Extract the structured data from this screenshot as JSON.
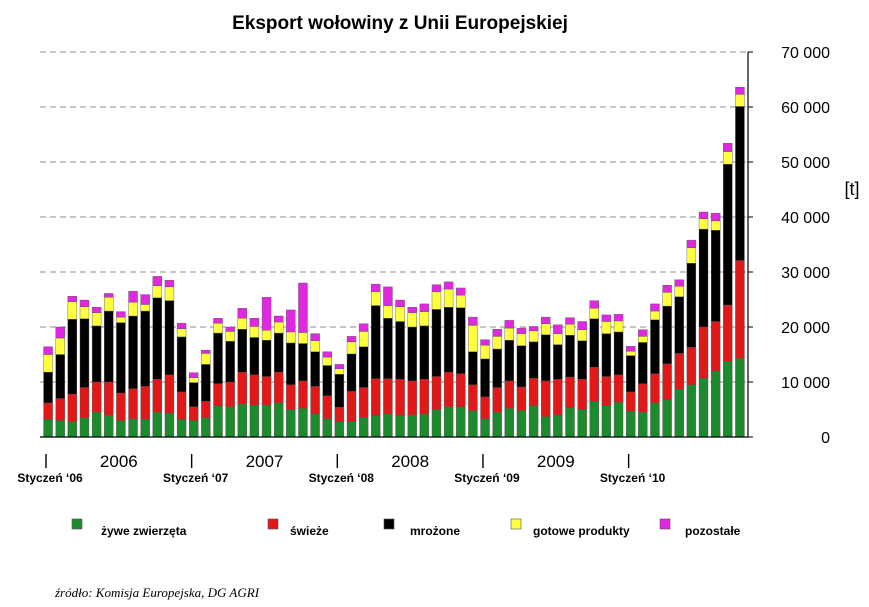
{
  "chart_data": {
    "type": "bar",
    "stacked": true,
    "title": "Eksport wołowiny z Unii Europejskiej",
    "unit_label": "[t]",
    "ylim": [
      0,
      70000
    ],
    "y_ticks": [
      "0",
      "10 000",
      "20 000",
      "30 000",
      "40 000",
      "50 000",
      "60 000",
      "70 000"
    ],
    "y_axis_side": "right",
    "grid": "horizontal dashed",
    "legend_position": "bottom",
    "year_labels": [
      "2006",
      "2007",
      "2008",
      "2009"
    ],
    "month_labels": [
      "Styczeń ‘06",
      "Styczeń ‘07",
      "Styczeń ‘08",
      "Styczeń ‘09",
      "Styczeń ‘10"
    ],
    "series": [
      {
        "name": "żywe zwierzęta",
        "color": "#1e8a2e",
        "values": [
          3200,
          3000,
          2800,
          3500,
          4500,
          4000,
          3000,
          3300,
          3200,
          4500,
          4300,
          3200,
          3000,
          3500,
          5700,
          5500,
          6000,
          5800,
          5800,
          6200,
          5000,
          5200,
          4200,
          3300,
          2800,
          2800,
          3600,
          4000,
          4200,
          4000,
          4000,
          4200,
          5000,
          5500,
          5500,
          4800,
          3300,
          4500,
          5200,
          4800,
          5700,
          3700,
          4000,
          5300,
          5000,
          6500,
          5700,
          6300,
          4700,
          4500,
          6200,
          6800,
          8700,
          9500,
          10700,
          12000,
          13800,
          14300
        ]
      },
      {
        "name": "świeże",
        "color": "#e01818",
        "values": [
          3000,
          4000,
          5000,
          5500,
          5500,
          6000,
          5000,
          5500,
          6000,
          6000,
          7000,
          5000,
          2500,
          3000,
          4000,
          4500,
          5800,
          5500,
          5200,
          5600,
          4500,
          5000,
          5000,
          4200,
          2600,
          5500,
          5400,
          6600,
          6400,
          6500,
          6200,
          6300,
          6000,
          6300,
          6000,
          4700,
          4000,
          4500,
          5000,
          4300,
          5000,
          6500,
          6500,
          5600,
          5500,
          6200,
          5300,
          5000,
          3500,
          5200,
          5300,
          6500,
          6500,
          6800,
          9300,
          9000,
          10200,
          17800
        ]
      },
      {
        "name": "mrożone",
        "color": "#000000",
        "values": [
          5600,
          8000,
          13600,
          12500,
          10200,
          12900,
          12800,
          13200,
          13700,
          14800,
          13500,
          10000,
          4400,
          6700,
          9200,
          7400,
          7800,
          6800,
          6600,
          7100,
          7600,
          6800,
          6300,
          5500,
          6000,
          6800,
          7400,
          13300,
          11000,
          10500,
          9800,
          9700,
          12200,
          11800,
          12000,
          6000,
          6900,
          7000,
          7400,
          7500,
          6600,
          8400,
          6300,
          7600,
          7000,
          8800,
          7800,
          7800,
          6600,
          7500,
          9800,
          10500,
          10300,
          15300,
          17800,
          16600,
          25600,
          28000
        ]
      },
      {
        "name": "gotowe produkty",
        "color": "#ffff40",
        "values": [
          3200,
          3000,
          3200,
          2200,
          2400,
          2500,
          1000,
          2500,
          1200,
          2200,
          2500,
          1500,
          900,
          2000,
          1800,
          1800,
          2000,
          2000,
          1800,
          2000,
          2000,
          2000,
          2000,
          1500,
          1000,
          2200,
          2800,
          2500,
          2300,
          2700,
          2600,
          2600,
          3200,
          3300,
          2300,
          4800,
          2500,
          2300,
          2200,
          2200,
          2000,
          2000,
          2000,
          2000,
          2000,
          1900,
          2200,
          2000,
          800,
          1100,
          1600,
          2500,
          1900,
          2800,
          1900,
          1700,
          2300,
          2200
        ]
      },
      {
        "name": "pozostałe",
        "color": "#e028e0",
        "values": [
          1400,
          2000,
          1000,
          1200,
          1000,
          700,
          1000,
          2000,
          1800,
          1700,
          1200,
          1000,
          900,
          600,
          900,
          800,
          1800,
          1500,
          6000,
          1100,
          4000,
          9000,
          1300,
          1000,
          800,
          1000,
          1400,
          1400,
          3400,
          1200,
          1000,
          1400,
          1300,
          1300,
          1300,
          1500,
          1000,
          1300,
          1400,
          1000,
          800,
          1200,
          1600,
          1200,
          1500,
          1400,
          1200,
          1200,
          900,
          1200,
          1300,
          1300,
          1200,
          1400,
          1200,
          1400,
          1500,
          1300
        ]
      }
    ]
  },
  "source_text": "źródło: Komisja Europejska, DG AGRI"
}
